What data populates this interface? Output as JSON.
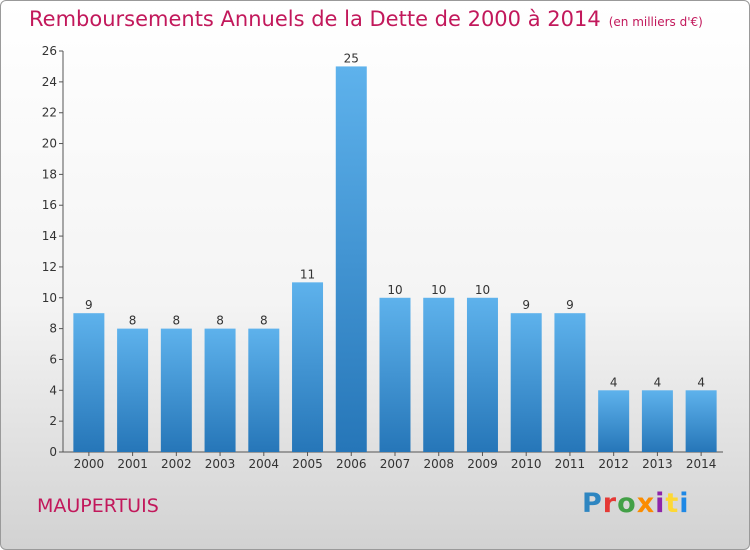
{
  "header": {
    "title": "Remboursements Annuels de la Dette de 2000 à 2014",
    "unit": "(en milliers d'€)"
  },
  "footer": {
    "commune": "MAUPERTUIS",
    "logo_text": "Proxiti"
  },
  "colors": {
    "title": "#c2185b",
    "bar_top": "#5eb2ec",
    "bar_bottom": "#2676b8",
    "logo_letters": [
      "#2e86c1",
      "#e53935",
      "#43a047",
      "#fb8c00",
      "#8e24aa",
      "#fdd835",
      "#1e88e5"
    ]
  },
  "chart_data": {
    "type": "bar",
    "title": "Remboursements Annuels de la Dette de 2000 à 2014",
    "categories": [
      "2000",
      "2001",
      "2002",
      "2003",
      "2004",
      "2005",
      "2006",
      "2007",
      "2008",
      "2009",
      "2010",
      "2011",
      "2012",
      "2013",
      "2014"
    ],
    "values": [
      9,
      8,
      8,
      8,
      8,
      11,
      25,
      10,
      10,
      10,
      9,
      9,
      4,
      4,
      4
    ],
    "ylim": [
      0,
      26
    ],
    "yticks": [
      0,
      2,
      4,
      6,
      8,
      10,
      12,
      14,
      16,
      18,
      20,
      22,
      24,
      26
    ],
    "grid": false,
    "data_labels": true
  }
}
